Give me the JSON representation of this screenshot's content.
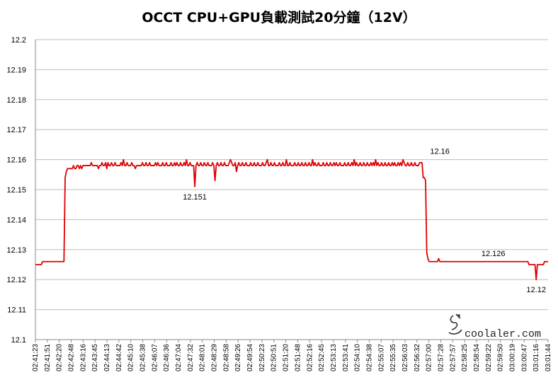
{
  "chart_data": {
    "type": "line",
    "title": "OCCT CPU+GPU負載測試20分鐘（12V）",
    "xlabel": "",
    "ylabel": "",
    "ylim": [
      12.1,
      12.2
    ],
    "yticks": [
      "12.1",
      "12.11",
      "12.12",
      "12.13",
      "12.14",
      "12.15",
      "12.16",
      "12.17",
      "12.18",
      "12.19",
      "12.2"
    ],
    "x_tick_labels": [
      "02:41:23",
      "02:41:51",
      "02:42:20",
      "02:42:48",
      "02:43:16",
      "02:43:45",
      "02:44:13",
      "02:44:42",
      "02:45:10",
      "02:45:38",
      "02:46:07",
      "02:46:36",
      "02:47:04",
      "02:47:32",
      "02:48:01",
      "02:48:29",
      "02:48:58",
      "02:49:26",
      "02:49:54",
      "02:50:23",
      "02:50:51",
      "02:51:20",
      "02:51:48",
      "02:52:16",
      "02:52:45",
      "02:53:13",
      "02:53:41",
      "02:54:10",
      "02:54:38",
      "02:55:07",
      "02:55:35",
      "02:56:03",
      "02:56:32",
      "02:57:00",
      "02:57:28",
      "02:57:57",
      "02:58:25",
      "02:58:54",
      "02:59:22",
      "02:59:50",
      "03:00:19",
      "03:00:47",
      "03:01:16",
      "03:01:44"
    ],
    "grid": true,
    "legend": "none",
    "series_color": "#e00000",
    "series": [
      {
        "x_range": [
          "02:41:23",
          "03:01:44"
        ],
        "values": [
          12.125,
          12.125,
          12.125,
          12.125,
          12.125,
          12.125,
          12.126,
          12.126,
          12.126,
          12.126,
          12.126,
          12.126,
          12.126,
          12.126,
          12.126,
          12.126,
          12.126,
          12.126,
          12.126,
          12.126,
          12.126,
          12.126,
          12.126,
          12.126,
          12.126,
          12.154,
          12.156,
          12.157,
          12.157,
          12.157,
          12.157,
          12.157,
          12.158,
          12.157,
          12.157,
          12.158,
          12.158,
          12.157,
          12.158,
          12.157,
          12.158,
          12.158,
          12.158,
          12.158,
          12.158,
          12.158,
          12.158,
          12.159,
          12.158,
          12.158,
          12.158,
          12.158,
          12.158,
          12.157,
          12.158,
          12.158,
          12.159,
          12.158,
          12.158,
          12.159,
          12.157,
          12.159,
          12.158,
          12.158,
          12.159,
          12.158,
          12.158,
          12.159,
          12.158,
          12.158,
          12.158,
          12.158,
          12.159,
          12.158,
          12.16,
          12.158,
          12.158,
          12.159,
          12.158,
          12.158,
          12.158,
          12.159,
          12.158,
          12.158,
          12.157,
          12.158,
          12.158,
          12.158,
          12.158,
          12.158,
          12.159,
          12.158,
          12.158,
          12.159,
          12.158,
          12.158,
          12.159,
          12.158,
          12.158,
          12.158,
          12.158,
          12.159,
          12.158,
          12.159,
          12.158,
          12.158,
          12.158,
          12.159,
          12.158,
          12.158,
          12.159,
          12.158,
          12.158,
          12.158,
          12.159,
          12.158,
          12.158,
          12.159,
          12.158,
          12.159,
          12.158,
          12.158,
          12.159,
          12.158,
          12.158,
          12.159,
          12.158,
          12.16,
          12.158,
          12.158,
          12.159,
          12.158,
          12.158,
          12.158,
          12.151,
          12.158,
          12.159,
          12.158,
          12.158,
          12.159,
          12.158,
          12.158,
          12.159,
          12.158,
          12.158,
          12.159,
          12.158,
          12.158,
          12.158,
          12.159,
          12.158,
          12.153,
          12.158,
          12.159,
          12.158,
          12.158,
          12.159,
          12.158,
          12.158,
          12.159,
          12.158,
          12.158,
          12.158,
          12.159,
          12.16,
          12.159,
          12.158,
          12.158,
          12.159,
          12.156,
          12.158,
          12.159,
          12.158,
          12.158,
          12.159,
          12.158,
          12.158,
          12.159,
          12.158,
          12.158,
          12.158,
          12.159,
          12.158,
          12.158,
          12.159,
          12.158,
          12.158,
          12.159,
          12.158,
          12.158,
          12.158,
          12.159,
          12.158,
          12.158,
          12.159,
          12.16,
          12.158,
          12.158,
          12.159,
          12.158,
          12.158,
          12.159,
          12.158,
          12.158,
          12.158,
          12.159,
          12.158,
          12.158,
          12.159,
          12.158,
          12.158,
          12.16,
          12.158,
          12.158,
          12.159,
          12.158,
          12.158,
          12.158,
          12.159,
          12.158,
          12.158,
          12.159,
          12.158,
          12.158,
          12.159,
          12.158,
          12.158,
          12.159,
          12.158,
          12.158,
          12.159,
          12.158,
          12.158,
          12.16,
          12.158,
          12.159,
          12.158,
          12.158,
          12.159,
          12.158,
          12.158,
          12.158,
          12.159,
          12.158,
          12.158,
          12.159,
          12.158,
          12.158,
          12.159,
          12.158,
          12.158,
          12.159,
          12.158,
          12.159,
          12.158,
          12.158,
          12.159,
          12.158,
          12.158,
          12.158,
          12.159,
          12.158,
          12.158,
          12.159,
          12.158,
          12.158,
          12.159,
          12.158,
          12.16,
          12.158,
          12.159,
          12.158,
          12.158,
          12.159,
          12.158,
          12.158,
          12.159,
          12.158,
          12.158,
          12.159,
          12.158,
          12.158,
          12.159,
          12.158,
          12.159,
          12.158,
          12.16,
          12.158,
          12.159,
          12.158,
          12.158,
          12.159,
          12.158,
          12.158,
          12.159,
          12.158,
          12.158,
          12.159,
          12.158,
          12.158,
          12.159,
          12.158,
          12.159,
          12.158,
          12.158,
          12.159,
          12.158,
          12.159,
          12.158,
          12.16,
          12.159,
          12.158,
          12.158,
          12.159,
          12.158,
          12.158,
          12.159,
          12.158,
          12.158,
          12.159,
          12.158,
          12.158,
          12.158,
          12.159,
          12.159,
          12.159,
          12.154,
          12.154,
          12.153,
          12.129,
          12.127,
          12.126,
          12.126,
          12.126,
          12.126,
          12.126,
          12.126,
          12.126,
          12.126,
          12.127,
          12.126,
          12.126,
          12.126,
          12.126,
          12.126,
          12.126,
          12.126,
          12.126,
          12.126,
          12.126,
          12.126,
          12.126,
          12.126,
          12.126,
          12.126,
          12.126,
          12.126,
          12.126,
          12.126,
          12.126,
          12.126,
          12.126,
          12.126,
          12.126,
          12.126,
          12.126,
          12.126,
          12.126,
          12.126,
          12.126,
          12.126,
          12.126,
          12.126,
          12.126,
          12.126,
          12.126,
          12.126,
          12.126,
          12.126,
          12.126,
          12.126,
          12.126,
          12.126,
          12.126,
          12.126,
          12.126,
          12.126,
          12.126,
          12.126,
          12.126,
          12.126,
          12.126,
          12.126,
          12.126,
          12.126,
          12.126,
          12.126,
          12.126,
          12.126,
          12.126,
          12.126,
          12.126,
          12.126,
          12.126,
          12.126,
          12.126,
          12.126,
          12.126,
          12.126,
          12.126,
          12.126,
          12.126,
          12.126,
          12.126,
          12.126,
          12.125,
          12.125,
          12.125,
          12.125,
          12.125,
          12.125,
          12.12,
          12.125,
          12.125,
          12.125,
          12.125,
          12.125,
          12.125,
          12.126,
          12.126,
          12.126,
          12.126
        ]
      }
    ],
    "annotations": [
      {
        "text": "12.16",
        "x_index": 340,
        "value": 12.16,
        "pos": "above"
      },
      {
        "text": "12.151",
        "x_index": 134,
        "value": 12.151,
        "pos": "below"
      },
      {
        "text": "12.126",
        "x_index": 385,
        "value": 12.126,
        "pos": "above"
      },
      {
        "text": "12.12",
        "x_index": 421,
        "value": 12.12,
        "pos": "below"
      }
    ]
  },
  "watermark": {
    "text": "coolaler.com"
  }
}
